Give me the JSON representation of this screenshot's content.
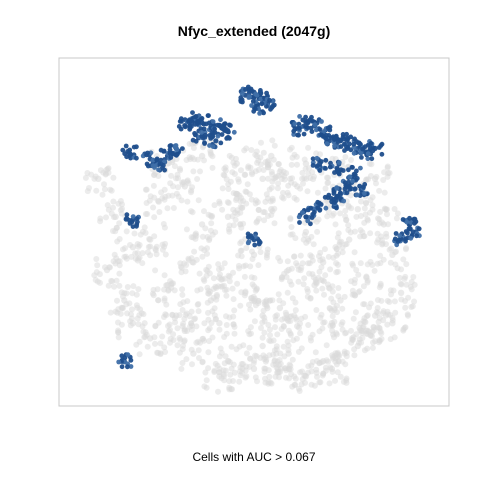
{
  "chart_data": {
    "type": "scatter",
    "title": "Nfyc_extended (2047g)",
    "caption": "Cells with AUC > 0.067",
    "xlabel": "",
    "ylabel": "",
    "axes_visible": false,
    "grid": false,
    "legend": "none",
    "plot_frame": true,
    "colors": {
      "background_cells": "#d9d9d9",
      "high_auc_cells": "#1f4e8c",
      "high_auc_cells_light": "#3f6fa8",
      "frame": "#c8c8c8"
    },
    "series": [
      {
        "role": "background",
        "x": [
          -0.9,
          -0.8,
          -0.7,
          -0.55,
          -0.4,
          -0.3,
          -0.1,
          0.05,
          0.25,
          0.45,
          0.6,
          0.75,
          -0.85,
          -0.6,
          -0.35,
          -0.15,
          0.1,
          0.3,
          0.55,
          0.8,
          -0.75,
          -0.5,
          -0.2,
          0.0,
          0.2,
          0.4,
          0.65,
          0.85,
          -0.7,
          -0.45,
          -0.25,
          -0.05,
          0.15,
          0.35,
          0.5,
          0.7,
          -0.6,
          -0.4,
          -0.2,
          0.05,
          0.25,
          0.45,
          0.65,
          0.8,
          -0.5,
          -0.3,
          -0.1,
          0.1,
          0.3,
          0.5,
          0.7,
          -0.35,
          -0.15,
          0.05,
          0.2,
          0.4,
          0.6,
          -0.2,
          0.0,
          0.15,
          0.3,
          0.45
        ],
        "y": [
          0.35,
          0.1,
          -0.1,
          0.2,
          0.3,
          0.05,
          0.25,
          0.35,
          0.3,
          0.2,
          0.15,
          0.05,
          -0.25,
          -0.05,
          -0.2,
          0.1,
          0.15,
          0.0,
          -0.05,
          -0.15,
          -0.45,
          -0.35,
          -0.3,
          -0.15,
          -0.25,
          -0.2,
          -0.3,
          -0.4,
          -0.6,
          -0.55,
          -0.45,
          -0.4,
          -0.5,
          -0.35,
          -0.45,
          -0.55,
          -0.7,
          -0.65,
          -0.6,
          -0.55,
          -0.62,
          -0.6,
          -0.65,
          -0.6,
          0.45,
          0.5,
          0.45,
          0.5,
          0.45,
          0.4,
          0.35,
          -0.8,
          -0.85,
          -0.75,
          -0.8,
          -0.85,
          -0.75,
          -0.95,
          -0.9,
          -0.92,
          -0.95,
          -0.9
        ]
      },
      {
        "role": "cells_with_high_auc",
        "x": [
          -0.4,
          -0.35,
          -0.3,
          -0.25,
          -0.2,
          -0.15,
          -0.32,
          -0.22,
          -0.05,
          0.0,
          0.05,
          0.08,
          0.02,
          -0.45,
          -0.5,
          -0.55,
          -0.6,
          -0.72,
          0.25,
          0.3,
          0.35,
          0.4,
          0.45,
          0.5,
          0.55,
          0.6,
          0.65,
          0.7,
          0.38,
          0.48,
          0.58,
          0.45,
          0.5,
          0.55,
          0.62,
          0.35,
          0.3,
          0.9,
          0.92,
          0.85,
          -0.75,
          0.0,
          -0.7
        ],
        "y": [
          0.7,
          0.75,
          0.72,
          0.68,
          0.7,
          0.66,
          0.62,
          0.6,
          0.9,
          0.92,
          0.88,
          0.85,
          0.82,
          0.55,
          0.5,
          0.45,
          0.48,
          0.52,
          0.68,
          0.72,
          0.7,
          0.65,
          0.62,
          0.6,
          0.58,
          0.55,
          0.52,
          0.55,
          0.45,
          0.42,
          0.38,
          0.2,
          0.25,
          0.3,
          0.28,
          0.15,
          0.1,
          0.05,
          0.0,
          -0.05,
          -0.85,
          -0.05,
          0.08
        ]
      }
    ],
    "xlim": [
      -1,
      1
    ],
    "ylim": [
      -1,
      1
    ]
  }
}
